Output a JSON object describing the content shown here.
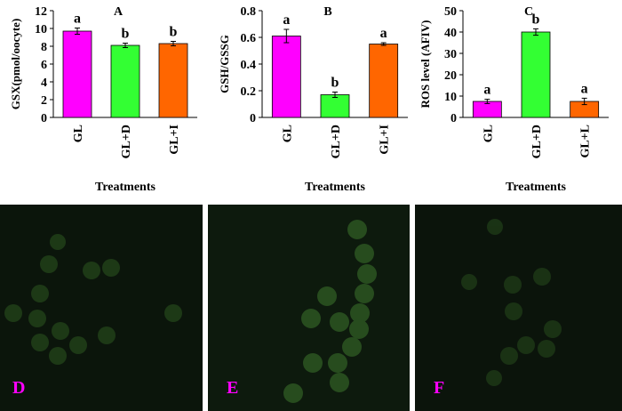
{
  "chart_data": [
    {
      "type": "bar",
      "title": "A",
      "ylabel": "GSX(pmol/oocyte)",
      "xlabel": "Treatments",
      "categories": [
        "GL",
        "GL+D",
        "GL+I"
      ],
      "values": [
        9.7,
        8.1,
        8.3
      ],
      "errors": [
        0.35,
        0.25,
        0.25
      ],
      "annotations": [
        "a",
        "b",
        "b"
      ],
      "colors": [
        "#ff00ff",
        "#33ff33",
        "#ff6600"
      ],
      "ylim": [
        0,
        12
      ],
      "yticks": [
        0,
        2,
        4,
        6,
        8,
        10,
        12
      ]
    },
    {
      "type": "bar",
      "title": "B",
      "ylabel": "GSH/GSSG",
      "xlabel": "Treatments",
      "categories": [
        "GL",
        "GL+D",
        "GL+I"
      ],
      "values": [
        0.61,
        0.17,
        0.55
      ],
      "errors": [
        0.05,
        0.02,
        0.01
      ],
      "annotations": [
        "a",
        "b",
        "a"
      ],
      "colors": [
        "#ff00ff",
        "#33ff33",
        "#ff6600"
      ],
      "ylim": [
        0,
        0.8
      ],
      "yticks": [
        0,
        0.2,
        0.4,
        0.6,
        0.8
      ]
    },
    {
      "type": "bar",
      "title": "C",
      "ylabel": "ROS level (AFIV)",
      "xlabel": "Treatments",
      "categories": [
        "GL",
        "GL+D",
        "GL+L"
      ],
      "values": [
        7.5,
        40,
        7.5
      ],
      "errors": [
        1,
        1.5,
        1.5
      ],
      "annotations": [
        "a",
        "b",
        "a"
      ],
      "colors": [
        "#ff00ff",
        "#33ff33",
        "#ff6600"
      ],
      "ylim": [
        0,
        50
      ],
      "yticks": [
        0,
        10,
        20,
        30,
        40,
        50
      ]
    }
  ],
  "panels": [
    {
      "label": "D"
    },
    {
      "label": "E"
    },
    {
      "label": "F"
    }
  ]
}
